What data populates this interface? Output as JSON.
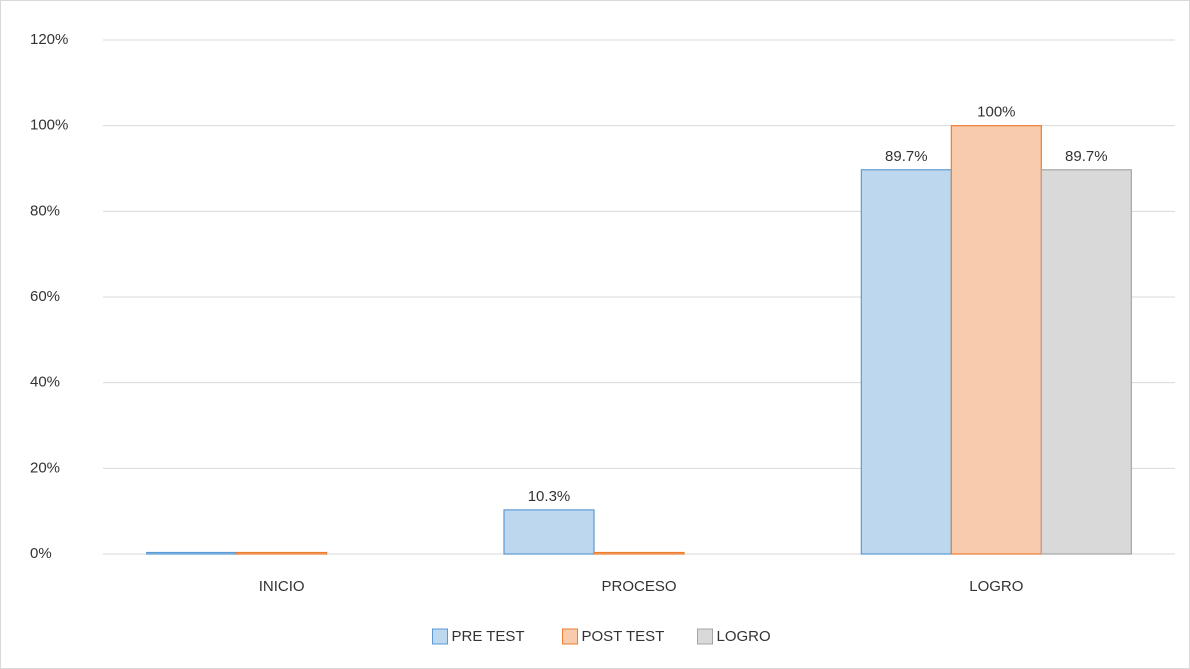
{
  "chart_data": {
    "type": "bar",
    "categories": [
      "INICIO",
      "PROCESO",
      "LOGRO"
    ],
    "series": [
      {
        "name": "PRE TEST",
        "color": "#bdd7ee",
        "stroke": "#5b9bd5",
        "values": [
          0,
          10.3,
          89.7
        ],
        "value_labels": [
          null,
          "10.3%",
          "89.7%"
        ]
      },
      {
        "name": "POST TEST",
        "color": "#f8cbad",
        "stroke": "#ed7d31",
        "values": [
          0,
          0,
          100
        ],
        "value_labels": [
          null,
          null,
          "100%"
        ]
      },
      {
        "name": "LOGRO",
        "color": "#d9d9d9",
        "stroke": "#a5a5a5",
        "values": [
          null,
          null,
          89.7
        ],
        "value_labels": [
          null,
          null,
          "89.7%"
        ]
      }
    ],
    "ylim": [
      0,
      120
    ],
    "yticks": [
      {
        "value": 0,
        "label": "0%"
      },
      {
        "value": 20,
        "label": "20%"
      },
      {
        "value": 40,
        "label": "40%"
      },
      {
        "value": 60,
        "label": "60%"
      },
      {
        "value": 80,
        "label": "80%"
      },
      {
        "value": 100,
        "label": "100%"
      },
      {
        "value": 120,
        "label": "120%"
      }
    ],
    "grid": true,
    "legend": "bottom"
  }
}
